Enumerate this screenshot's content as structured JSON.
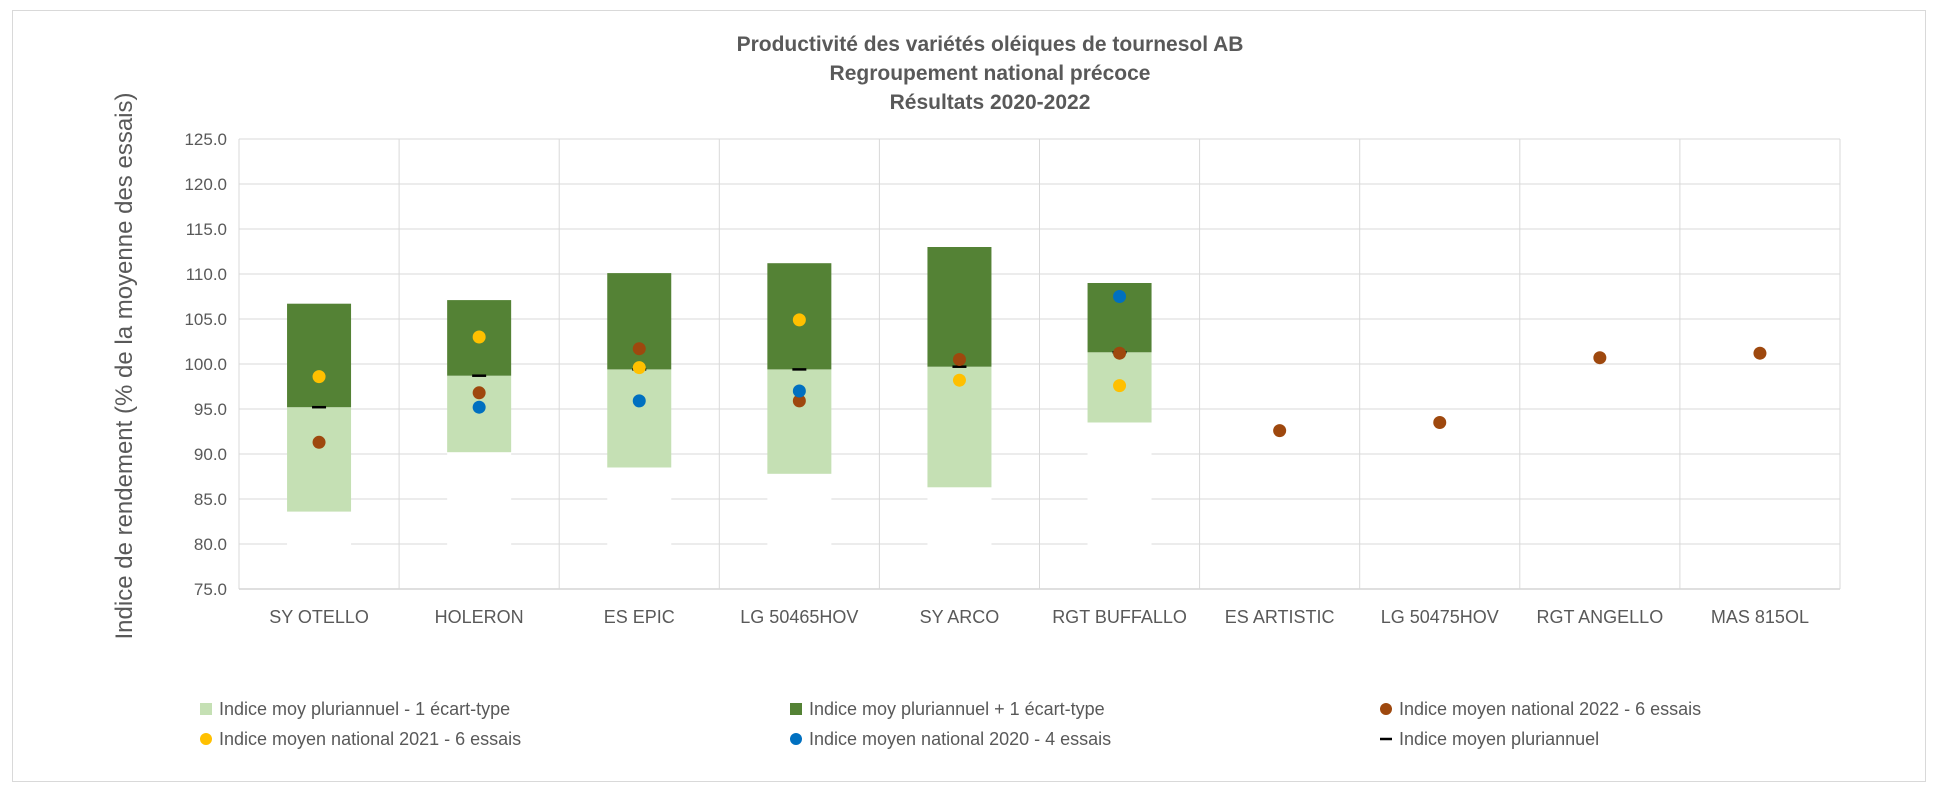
{
  "chart_data": {
    "type": "bar",
    "title_lines": [
      "Productivité des variétés oléiques de tournesol AB",
      "Regroupement national précoce",
      "Résultats 2020-2022"
    ],
    "ylabel": "Indice de rendement (% de la moyenne des essais)",
    "xlabel": "",
    "ylim": [
      75,
      125
    ],
    "yticks": [
      "75.0",
      "80.0",
      "85.0",
      "90.0",
      "95.0",
      "100.0",
      "105.0",
      "110.0",
      "115.0",
      "120.0",
      "125.0"
    ],
    "grid": true,
    "legend_position": "bottom",
    "categories": [
      "SY OTELLO",
      "HOLERON",
      "ES EPIC",
      "LG 50465HOV",
      "SY ARCO",
      "RGT BUFFALLO",
      "ES ARTISTIC",
      "LG 50475HOV",
      "RGT ANGELLO",
      "MAS 815OL"
    ],
    "series": [
      {
        "name": "Indice moy pluriannuel - 1 écart-type",
        "kind": "range-low",
        "color": "#c5e0b4",
        "values": [
          83.6,
          90.2,
          88.5,
          87.8,
          86.3,
          93.5,
          null,
          null,
          null,
          null
        ]
      },
      {
        "name": "Indice moy pluriannuel + 1 écart-type",
        "kind": "range-high",
        "color": "#548235",
        "values": [
          106.7,
          107.1,
          110.1,
          111.2,
          113.0,
          109.0,
          null,
          null,
          null,
          null
        ]
      },
      {
        "name": "Indice moyen national 2022 - 6 essais",
        "kind": "point",
        "color": "#9e480e",
        "values": [
          91.3,
          96.8,
          101.7,
          95.9,
          100.5,
          101.2,
          92.6,
          93.5,
          100.7,
          101.2
        ]
      },
      {
        "name": "Indice moyen national 2021 - 6 essais",
        "kind": "point",
        "color": "#ffc000",
        "values": [
          98.6,
          103.0,
          99.6,
          104.9,
          98.2,
          97.6,
          null,
          null,
          null,
          null
        ]
      },
      {
        "name": "Indice moyen national 2020 - 4 essais",
        "kind": "point",
        "color": "#0070c0",
        "values": [
          null,
          95.2,
          95.9,
          97.0,
          null,
          107.5,
          null,
          null,
          null,
          null
        ]
      },
      {
        "name": "Indice moyen pluriannuel",
        "kind": "dash",
        "color": "#000000",
        "values": [
          95.2,
          98.7,
          99.4,
          99.4,
          99.7,
          101.3,
          null,
          null,
          null,
          null
        ]
      }
    ]
  }
}
